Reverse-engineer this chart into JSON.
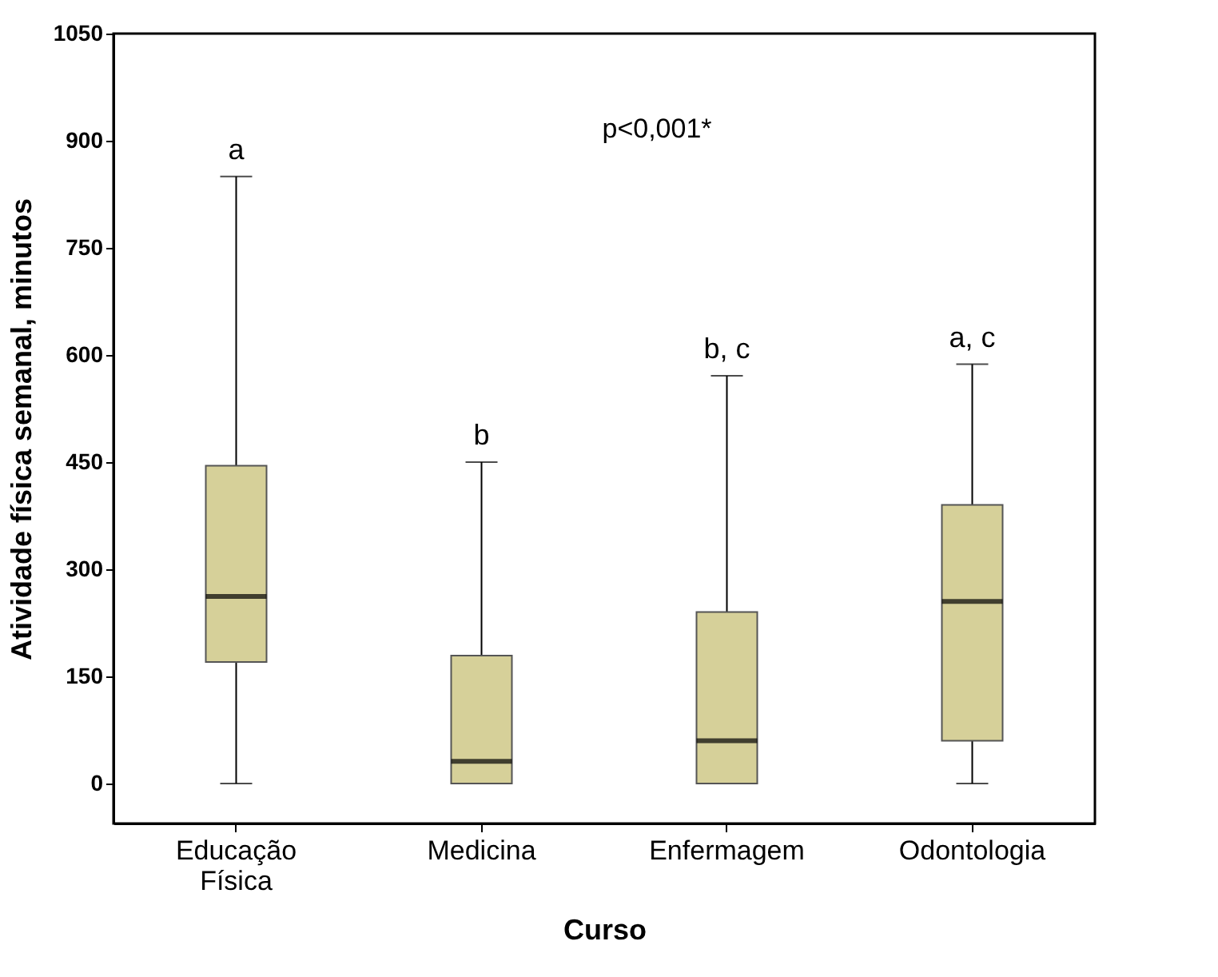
{
  "chart_data": {
    "type": "box",
    "xlabel": "Curso",
    "ylabel": "Atividade física semanal, minutos",
    "categories": [
      "Educação Física",
      "Medicina",
      "Enfermagem",
      "Odontologia"
    ],
    "boxes": [
      {
        "low": 0,
        "q1": 170,
        "median": 262,
        "q3": 445,
        "high": 850
      },
      {
        "low": 0,
        "q1": 0,
        "median": 31,
        "q3": 179,
        "high": 450
      },
      {
        "low": 0,
        "q1": 0,
        "median": 60,
        "q3": 240,
        "high": 571
      },
      {
        "low": 0,
        "q1": 60,
        "median": 255,
        "q3": 390,
        "high": 587
      }
    ],
    "color": "#d6d099",
    "ylim": [
      -56,
      1050
    ],
    "yticks": [
      0,
      150,
      300,
      450,
      600,
      750,
      900,
      1050
    ],
    "grid": false,
    "annotations": [
      "p<0,001*",
      {
        "text": "a",
        "x": "Educação Física",
        "y": 850
      },
      {
        "text": "b",
        "x": "Medicina",
        "y": 450
      },
      {
        "text": "b, c",
        "x": "Enfermagem",
        "y": 571
      },
      {
        "text": "a, c",
        "x": "Odontologia",
        "y": 587
      }
    ]
  }
}
